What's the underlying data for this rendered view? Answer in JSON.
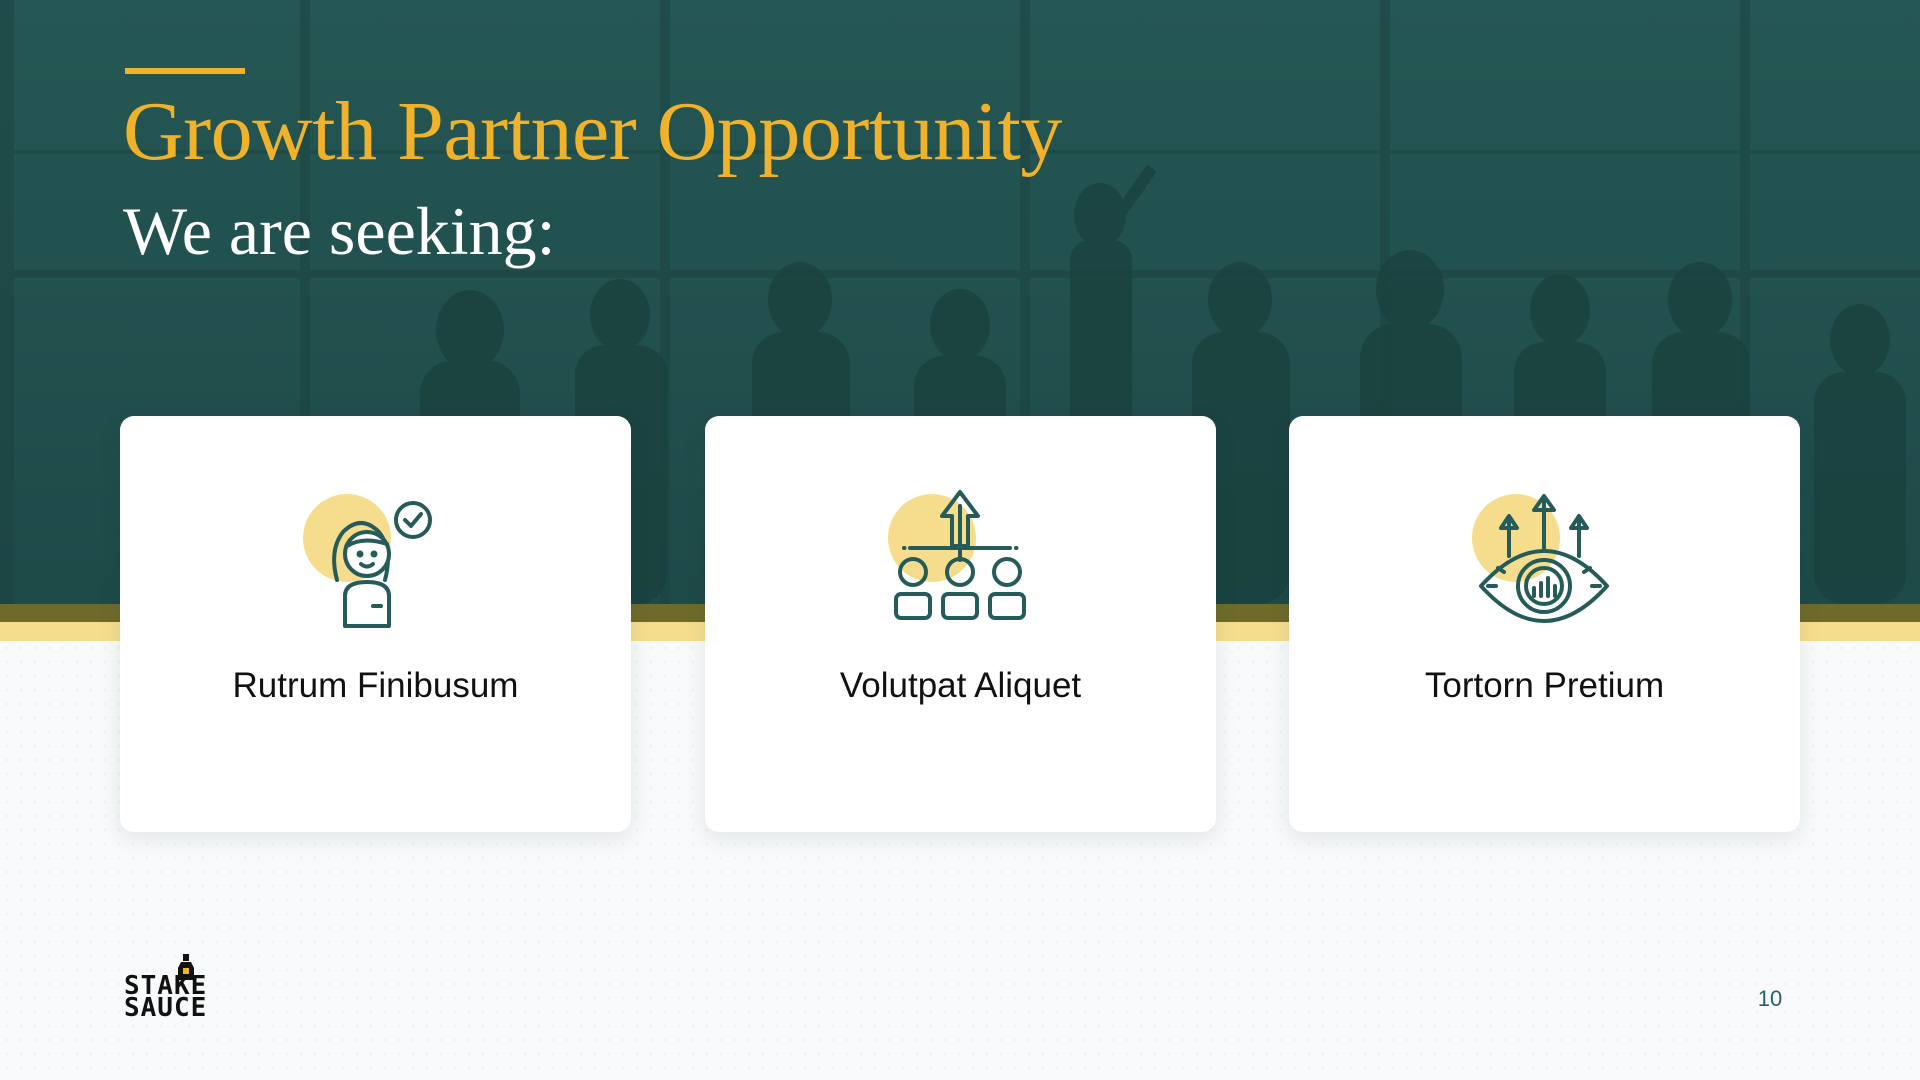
{
  "slide": {
    "title": "Growth Partner Opportunity",
    "subtitle": "We are seeking:",
    "page_number": "10"
  },
  "cards": [
    {
      "label": "Rutrum Finibusum",
      "icon": "person-check-icon"
    },
    {
      "label": "Volutpat Aliquet",
      "icon": "team-growth-icon"
    },
    {
      "label": "Tortorn Pretium",
      "icon": "vision-growth-icon"
    }
  ],
  "logo": {
    "line1": "STAKE",
    "line2": "SAUCE"
  },
  "colors": {
    "hero_background": "#235250",
    "accent_gold": "#f0b22a",
    "icon_stroke": "#255b58",
    "icon_highlight": "#f6dd8e",
    "band_olive": "#6e6b2a",
    "band_cream": "#f6dd8e"
  }
}
